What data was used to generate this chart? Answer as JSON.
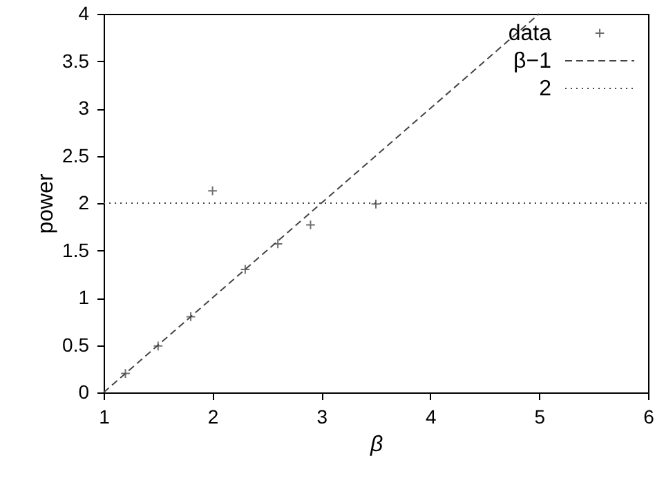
{
  "chart_data": {
    "type": "scatter",
    "xlabel": "β",
    "ylabel": "power",
    "xlim": [
      1,
      6
    ],
    "ylim": [
      0,
      4
    ],
    "xticks": [
      1,
      2,
      3,
      4,
      5,
      6
    ],
    "yticks": [
      0,
      0.5,
      1,
      1.5,
      2,
      2.5,
      3,
      3.5,
      4
    ],
    "grid": false,
    "legend": "top right",
    "series": [
      {
        "name": "data",
        "type": "scatter",
        "marker": "cross",
        "color": "#333333",
        "x": [
          1.2,
          1.5,
          1.8,
          2.0,
          2.3,
          2.6,
          2.9,
          3.5
        ],
        "values": [
          0.2,
          0.49,
          0.8,
          2.13,
          1.3,
          1.57,
          1.77,
          1.99
        ]
      },
      {
        "name": "β−1",
        "type": "line",
        "line_style": "dashed",
        "color": "#444444",
        "x": [
          1,
          5
        ],
        "values": [
          0,
          4
        ]
      },
      {
        "name": "2",
        "type": "line",
        "line_style": "dotted",
        "color": "#444444",
        "x": [
          1,
          6
        ],
        "values": [
          2,
          2
        ]
      }
    ]
  }
}
